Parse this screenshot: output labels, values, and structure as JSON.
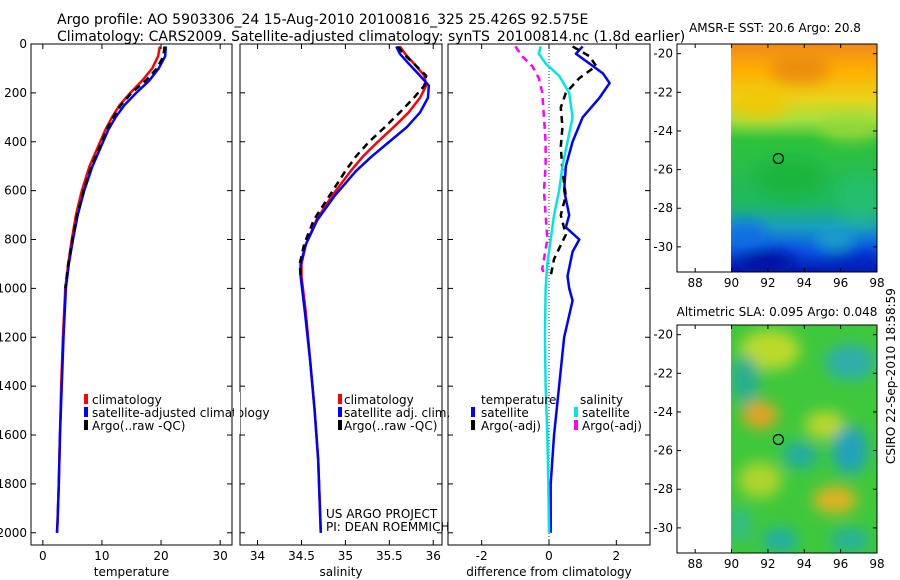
{
  "header": {
    "line1": "Argo profile: AO 5903306_24 15-Aug-2010 20100816_325 25.426S 92.575E",
    "line2": "Climatology: CARS2009. Satellite-adjusted climatology: synTS_20100814.nc (1.8d earlier)"
  },
  "side_label": "CSIRO  22-Sep-2010 18:58:59",
  "project": {
    "line1": "US ARGO PROJECT",
    "line2": "PI: DEAN ROEMMICH"
  },
  "colors": {
    "climatology": "#ff0000",
    "satellite": "#0000ff",
    "argo": "#000000",
    "sal_satellite": "#00e5e5",
    "sal_argo": "#ff00ff"
  },
  "chart_data": [
    {
      "type": "line",
      "title": "",
      "xlabel": "temperature",
      "ylabel": "",
      "xlim": [
        -2,
        32
      ],
      "ylim": [
        2050,
        0
      ],
      "xticks": [
        0,
        10,
        20,
        30
      ],
      "yticks": [
        0,
        200,
        400,
        600,
        800,
        1000,
        1200,
        1400,
        1600,
        1800,
        2000
      ],
      "legend": [
        "climatology",
        "satellite-adjusted climatology",
        "Argo(..raw -QC)"
      ],
      "legend_colors": [
        "#ff0000",
        "#0000ff",
        "#000000"
      ],
      "legend_placement": "lower-middle",
      "series": [
        {
          "name": "climatology",
          "color": "#ff0000",
          "dash": false,
          "x": [
            19.8,
            19.5,
            18.5,
            16.8,
            14.8,
            13.0,
            11.7,
            10.6,
            9.7,
            8.8,
            7.9,
            6.6,
            5.6,
            4.9,
            4.3,
            3.8,
            3.4,
            3.1,
            2.9,
            2.7,
            2.5,
            2.4
          ],
          "y": [
            10,
            50,
            100,
            150,
            200,
            250,
            300,
            350,
            400,
            450,
            500,
            600,
            700,
            800,
            900,
            1000,
            1200,
            1400,
            1600,
            1800,
            1950,
            2000
          ]
        },
        {
          "name": "satellite-adjusted climatology",
          "color": "#0000ff",
          "dash": false,
          "x": [
            20.8,
            20.7,
            19.6,
            18.0,
            15.8,
            13.8,
            12.3,
            11.1,
            10.2,
            9.3,
            8.4,
            7.0,
            5.9,
            5.1,
            4.4,
            3.9,
            3.5,
            3.2,
            2.9,
            2.7,
            2.5,
            2.4
          ],
          "y": [
            10,
            50,
            100,
            150,
            200,
            250,
            300,
            350,
            400,
            450,
            500,
            600,
            700,
            800,
            900,
            1000,
            1200,
            1400,
            1600,
            1800,
            1950,
            2000
          ]
        },
        {
          "name": "Argo(..raw -QC)",
          "color": "#000000",
          "dash": true,
          "x": [
            20.6,
            20.4,
            19.3,
            17.4,
            15.0,
            13.2,
            11.9,
            10.8,
            10.0,
            9.1,
            8.2,
            6.9,
            5.8,
            5.0,
            4.3,
            3.8
          ],
          "y": [
            10,
            50,
            100,
            150,
            200,
            250,
            300,
            350,
            400,
            450,
            500,
            600,
            700,
            800,
            900,
            1000
          ]
        }
      ]
    },
    {
      "type": "line",
      "title": "",
      "xlabel": "salinity",
      "ylabel": "",
      "xlim": [
        33.8,
        36.1
      ],
      "ylim": [
        2050,
        0
      ],
      "xticks": [
        34,
        34.5,
        35,
        35.5,
        36
      ],
      "yticks": [
        0,
        200,
        400,
        600,
        800,
        1000,
        1200,
        1400,
        1600,
        1800,
        2000
      ],
      "legend": [
        "climatology",
        "satellite adj. clim.",
        "Argo(..raw -QC)"
      ],
      "legend_colors": [
        "#ff0000",
        "#0000ff",
        "#000000"
      ],
      "legend_placement": "lower-right",
      "series": [
        {
          "name": "climatology",
          "color": "#ff0000",
          "dash": false,
          "x": [
            35.62,
            35.68,
            35.78,
            35.9,
            35.92,
            35.85,
            35.72,
            35.55,
            35.37,
            35.2,
            35.06,
            34.85,
            34.67,
            34.55,
            34.5,
            34.5,
            34.55,
            34.6,
            34.65,
            34.69,
            34.71,
            34.72
          ],
          "y": [
            10,
            40,
            80,
            130,
            170,
            220,
            280,
            340,
            400,
            460,
            520,
            620,
            720,
            820,
            900,
            950,
            1100,
            1300,
            1500,
            1700,
            1900,
            2000
          ]
        },
        {
          "name": "satellite adj. clim.",
          "color": "#0000ff",
          "dash": false,
          "x": [
            35.58,
            35.62,
            35.72,
            35.85,
            35.95,
            35.94,
            35.85,
            35.7,
            35.5,
            35.3,
            35.12,
            34.88,
            34.68,
            34.55,
            34.49,
            34.49,
            34.54,
            34.6,
            34.65,
            34.69,
            34.71,
            34.72
          ],
          "y": [
            10,
            40,
            80,
            130,
            170,
            220,
            280,
            340,
            400,
            460,
            520,
            620,
            720,
            820,
            900,
            950,
            1100,
            1300,
            1500,
            1700,
            1900,
            2000
          ]
        },
        {
          "name": "Argo(..raw -QC)",
          "color": "#000000",
          "dash": true,
          "x": [
            35.6,
            35.66,
            35.78,
            35.92,
            35.9,
            35.78,
            35.62,
            35.45,
            35.27,
            35.12,
            35.0,
            34.82,
            34.64,
            34.53,
            34.48,
            34.49
          ],
          "y": [
            10,
            40,
            80,
            130,
            170,
            220,
            280,
            340,
            400,
            460,
            520,
            620,
            720,
            820,
            900,
            950
          ]
        }
      ]
    },
    {
      "type": "line",
      "title": "",
      "xlabel": "difference from climatology",
      "ylabel": "",
      "xlim": [
        -3,
        3
      ],
      "ylim": [
        2050,
        0
      ],
      "xticks": [
        -2,
        0,
        2
      ],
      "yticks": [
        0,
        200,
        400,
        600,
        800,
        1000,
        1200,
        1400,
        1600,
        1800,
        2000
      ],
      "legend_groups": [
        {
          "heading": "temperature",
          "entries": [
            "satellite",
            "Argo(-adj)"
          ],
          "colors": [
            "#0000ff",
            "#000000"
          ]
        },
        {
          "heading": "salinity",
          "entries": [
            "satellite",
            "Argo(-adj)"
          ],
          "colors": [
            "#00e5e5",
            "#ff00ff"
          ]
        }
      ],
      "legend_placement": "lower-middle",
      "zero_line": true,
      "series": [
        {
          "name": "temperature satellite",
          "color": "#0000ff",
          "dash": false,
          "x": [
            1.0,
            0.8,
            1.2,
            1.6,
            1.8,
            1.5,
            1.0,
            0.7,
            0.5,
            0.45,
            0.6,
            0.5,
            0.9,
            0.7,
            0.55,
            0.6,
            0.7,
            0.45,
            0.3,
            0.15,
            0.05,
            0.05
          ],
          "y": [
            10,
            40,
            80,
            120,
            160,
            220,
            300,
            400,
            500,
            600,
            700,
            750,
            800,
            850,
            950,
            1000,
            1050,
            1200,
            1400,
            1600,
            1800,
            2000
          ]
        },
        {
          "name": "temperature Argo(-adj)",
          "color": "#000000",
          "dash": true,
          "x": [
            0.7,
            1.2,
            1.4,
            0.9,
            0.5,
            0.35,
            0.4,
            0.35,
            0.4,
            0.5,
            0.35,
            0.5,
            0.15,
            0.05
          ],
          "y": [
            10,
            50,
            90,
            140,
            200,
            260,
            340,
            420,
            520,
            620,
            700,
            780,
            880,
            950
          ]
        },
        {
          "name": "salinity satellite",
          "color": "#00e5e5",
          "dash": false,
          "x": [
            -0.25,
            -0.3,
            -0.1,
            0.3,
            0.6,
            0.7,
            0.55,
            0.4,
            0.3,
            0.15,
            0.05,
            -0.05,
            -0.1,
            -0.12,
            -0.1,
            -0.05,
            -0.02,
            0.0
          ],
          "y": [
            10,
            40,
            80,
            130,
            200,
            300,
            400,
            500,
            600,
            700,
            800,
            900,
            1000,
            1200,
            1400,
            1600,
            1800,
            2000
          ]
        },
        {
          "name": "salinity Argo(-adj)",
          "color": "#ff00ff",
          "dash": true,
          "x": [
            -1.0,
            -0.8,
            -0.5,
            -0.3,
            -0.2,
            -0.15,
            -0.1,
            -0.1,
            -0.15,
            -0.1,
            -0.05,
            -0.15,
            -0.2,
            -0.12
          ],
          "y": [
            10,
            50,
            90,
            140,
            200,
            300,
            400,
            500,
            600,
            700,
            800,
            880,
            920,
            950
          ]
        }
      ]
    },
    {
      "type": "heatmap",
      "title": "AMSR-E SST: 20.6  Argo: 20.8",
      "xlabel": "",
      "ylabel": "",
      "xlim": [
        87,
        98
      ],
      "ylim": [
        -31.3,
        -19.5
      ],
      "xticks": [
        88,
        90,
        92,
        94,
        96,
        98
      ],
      "yticks": [
        -20,
        -22,
        -24,
        -26,
        -28,
        -30
      ],
      "data_lon_range": [
        90,
        98
      ],
      "marker": {
        "lon": 92.575,
        "lat": -25.426
      }
    },
    {
      "type": "heatmap",
      "title": "Altimetric SLA: 0.095  Argo: 0.048",
      "xlabel": "",
      "ylabel": "",
      "xlim": [
        87,
        98
      ],
      "ylim": [
        -31.3,
        -19.5
      ],
      "xticks": [
        88,
        90,
        92,
        94,
        96,
        98
      ],
      "yticks": [
        -20,
        -22,
        -24,
        -26,
        -28,
        -30
      ],
      "data_lon_range": [
        90,
        98
      ],
      "marker": {
        "lon": 92.575,
        "lat": -25.426
      }
    }
  ]
}
